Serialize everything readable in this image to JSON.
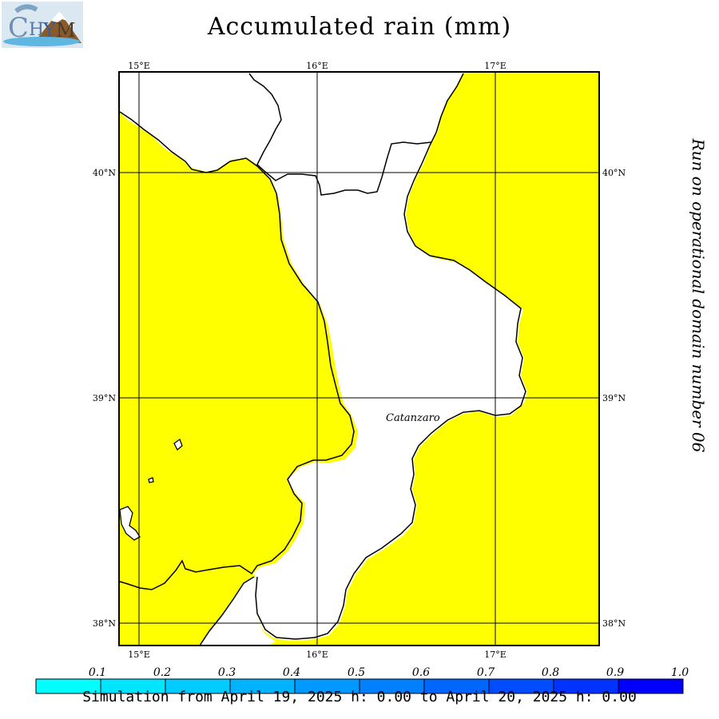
{
  "title": "Accumulated rain (mm)",
  "run_info": "Run on operational domain number 06",
  "simulation": "Simulation from April 19, 2025 h: 0.00 to April 20, 2025 h: 0.00",
  "city_label": "Catanzaro",
  "logo_icon": "chym-logo-icon",
  "lon_labels": [
    "15°E",
    "16°E",
    "17°E"
  ],
  "lat_labels": [
    "40°N",
    "39°N",
    "38°N"
  ],
  "colors": {
    "sea_rain": "#ffff00",
    "land": "#ffffff",
    "grid": "#000000"
  },
  "legend": {
    "values": [
      "0.1",
      "0.2",
      "0.3",
      "0.4",
      "0.5",
      "0.6",
      "0.7",
      "0.8",
      "0.9",
      "1.0"
    ],
    "colors": [
      "#00ffff",
      "#00e5ff",
      "#00ccff",
      "#00b3ff",
      "#0099ff",
      "#0080ff",
      "#0066ff",
      "#004cff",
      "#0033ff",
      "#0000ff"
    ]
  }
}
